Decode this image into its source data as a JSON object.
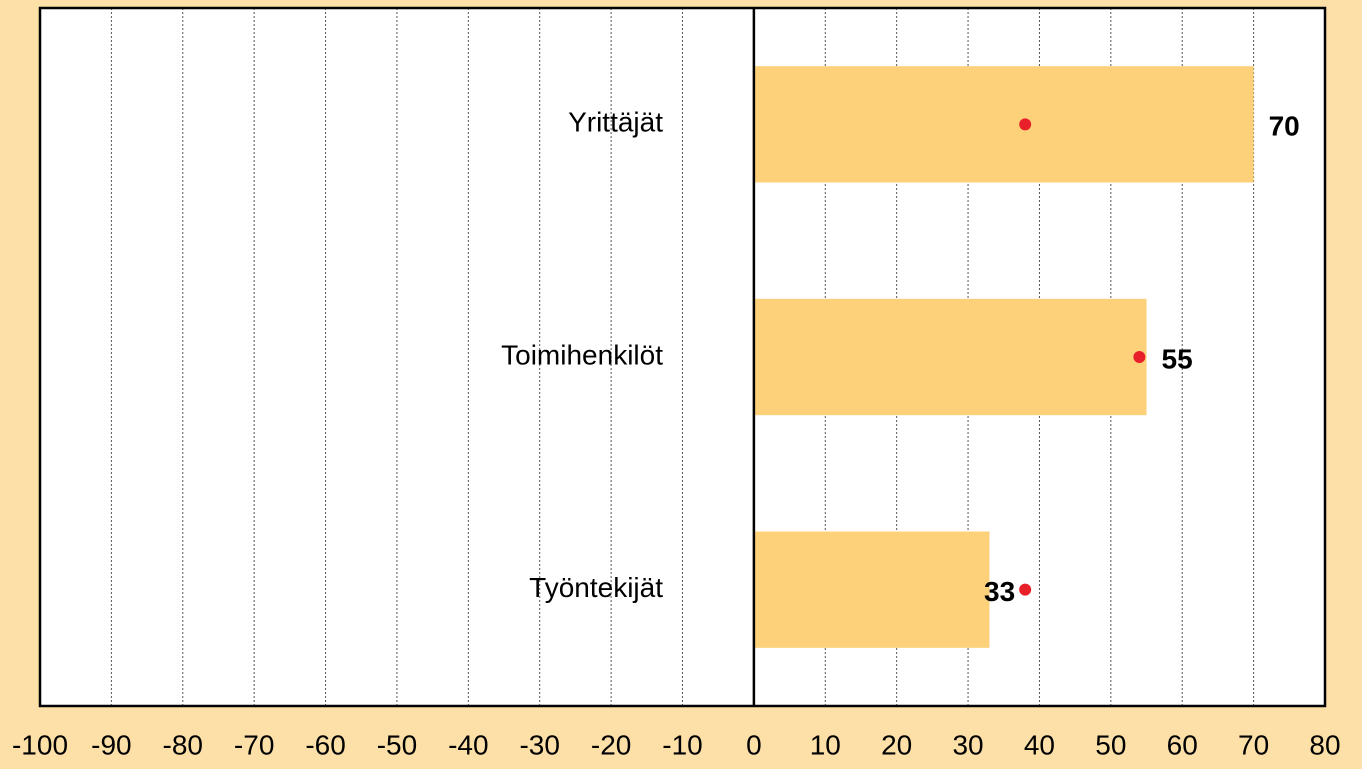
{
  "chart_data": {
    "type": "bar",
    "orientation": "horizontal",
    "categories": [
      "Yrittäjät",
      "Toimihenkilöt",
      "Työntekijät"
    ],
    "series": [
      {
        "color": "#fdd07a",
        "values": [
          70,
          55,
          33
        ]
      },
      {
        "color": "#e8202a",
        "marker": "dot",
        "values": [
          38,
          54,
          38
        ]
      }
    ],
    "xlim": [
      -100,
      80
    ],
    "xticks": [
      -100,
      -90,
      -80,
      -70,
      -60,
      -50,
      -40,
      -30,
      -20,
      -10,
      0,
      10,
      20,
      30,
      40,
      50,
      60,
      70,
      80
    ],
    "grid": true,
    "background": "#fde0a8"
  }
}
